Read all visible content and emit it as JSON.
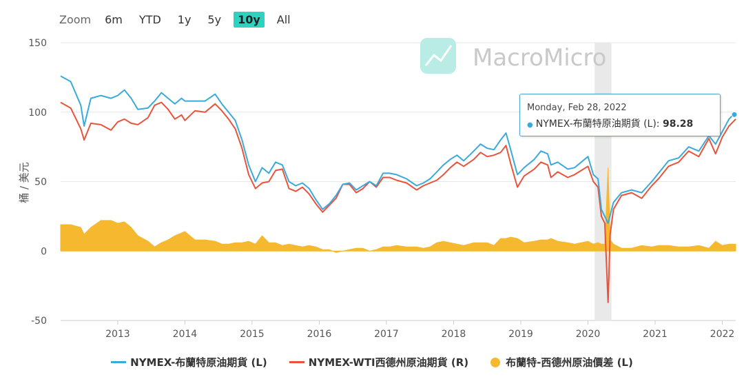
{
  "zoom": {
    "label": "Zoom",
    "buttons": [
      "6m",
      "YTD",
      "1y",
      "5y",
      "10y",
      "All"
    ],
    "active": "10y"
  },
  "watermark": "MacroMicro",
  "y_axis_title": "桶 / 美元",
  "tooltip": {
    "date": "Monday, Feb 28, 2022",
    "series": "NYMEX-布蘭特原油期貨 (L): ",
    "value": "98.28"
  },
  "legend": [
    {
      "label": "NYMEX-布蘭特原油期貨 (L)",
      "color": "#3aa9dc",
      "kind": "line"
    },
    {
      "label": "NYMEX-WTI西德州原油期貨 (R)",
      "color": "#e8533a",
      "kind": "line"
    },
    {
      "label": "布蘭特-西德州原油價差 (L)",
      "color": "#f5b82e",
      "kind": "dot"
    }
  ],
  "chart_data": {
    "type": "line",
    "x_ticks": [
      "2013",
      "2014",
      "2015",
      "2016",
      "2017",
      "2018",
      "2019",
      "2020",
      "2021",
      "2022"
    ],
    "y_ticks": [
      150,
      100,
      50,
      0,
      -50
    ],
    "ylim": [
      -50,
      150
    ],
    "xlim": [
      2012.15,
      2022.2
    ],
    "highlight_band": [
      2020.1,
      2020.35
    ],
    "series": [
      {
        "name": "NYMEX-布蘭特原油期貨 (L)",
        "color": "#3aa9dc",
        "points": [
          [
            2012.15,
            126
          ],
          [
            2012.3,
            122
          ],
          [
            2012.45,
            105
          ],
          [
            2012.5,
            90
          ],
          [
            2012.6,
            110
          ],
          [
            2012.75,
            112
          ],
          [
            2012.9,
            110
          ],
          [
            2013.0,
            112
          ],
          [
            2013.1,
            116
          ],
          [
            2013.2,
            110
          ],
          [
            2013.3,
            102
          ],
          [
            2013.45,
            103
          ],
          [
            2013.55,
            108
          ],
          [
            2013.65,
            114
          ],
          [
            2013.75,
            110
          ],
          [
            2013.85,
            106
          ],
          [
            2013.95,
            110
          ],
          [
            2014.0,
            108
          ],
          [
            2014.15,
            108
          ],
          [
            2014.3,
            108
          ],
          [
            2014.45,
            113
          ],
          [
            2014.55,
            106
          ],
          [
            2014.65,
            100
          ],
          [
            2014.75,
            94
          ],
          [
            2014.85,
            80
          ],
          [
            2014.95,
            62
          ],
          [
            2015.05,
            50
          ],
          [
            2015.15,
            60
          ],
          [
            2015.25,
            56
          ],
          [
            2015.35,
            64
          ],
          [
            2015.45,
            62
          ],
          [
            2015.55,
            50
          ],
          [
            2015.65,
            47
          ],
          [
            2015.75,
            49
          ],
          [
            2015.85,
            45
          ],
          [
            2015.95,
            37
          ],
          [
            2016.05,
            30
          ],
          [
            2016.15,
            34
          ],
          [
            2016.25,
            40
          ],
          [
            2016.35,
            48
          ],
          [
            2016.45,
            49
          ],
          [
            2016.55,
            44
          ],
          [
            2016.65,
            47
          ],
          [
            2016.75,
            50
          ],
          [
            2016.85,
            47
          ],
          [
            2016.95,
            56
          ],
          [
            2017.05,
            56
          ],
          [
            2017.15,
            55
          ],
          [
            2017.3,
            52
          ],
          [
            2017.45,
            47
          ],
          [
            2017.55,
            49
          ],
          [
            2017.65,
            52
          ],
          [
            2017.75,
            57
          ],
          [
            2017.85,
            62
          ],
          [
            2017.95,
            66
          ],
          [
            2018.05,
            69
          ],
          [
            2018.15,
            65
          ],
          [
            2018.3,
            72
          ],
          [
            2018.4,
            77
          ],
          [
            2018.5,
            74
          ],
          [
            2018.6,
            73
          ],
          [
            2018.7,
            80
          ],
          [
            2018.78,
            85
          ],
          [
            2018.85,
            73
          ],
          [
            2018.95,
            55
          ],
          [
            2019.05,
            60
          ],
          [
            2019.2,
            66
          ],
          [
            2019.3,
            72
          ],
          [
            2019.4,
            70
          ],
          [
            2019.45,
            62
          ],
          [
            2019.55,
            64
          ],
          [
            2019.7,
            59
          ],
          [
            2019.8,
            60
          ],
          [
            2019.9,
            64
          ],
          [
            2020.0,
            68
          ],
          [
            2020.08,
            55
          ],
          [
            2020.15,
            52
          ],
          [
            2020.2,
            30
          ],
          [
            2020.3,
            20
          ],
          [
            2020.38,
            35
          ],
          [
            2020.5,
            42
          ],
          [
            2020.65,
            44
          ],
          [
            2020.8,
            42
          ],
          [
            2020.95,
            50
          ],
          [
            2021.05,
            56
          ],
          [
            2021.2,
            65
          ],
          [
            2021.35,
            67
          ],
          [
            2021.5,
            75
          ],
          [
            2021.65,
            72
          ],
          [
            2021.8,
            83
          ],
          [
            2021.9,
            77
          ],
          [
            2022.0,
            86
          ],
          [
            2022.1,
            95
          ],
          [
            2022.2,
            100
          ]
        ]
      },
      {
        "name": "NYMEX-WTI西德州原油期貨 (R)",
        "color": "#e8533a",
        "points": [
          [
            2012.15,
            107
          ],
          [
            2012.3,
            103
          ],
          [
            2012.45,
            88
          ],
          [
            2012.5,
            80
          ],
          [
            2012.6,
            92
          ],
          [
            2012.75,
            91
          ],
          [
            2012.9,
            87
          ],
          [
            2013.0,
            93
          ],
          [
            2013.1,
            95
          ],
          [
            2013.2,
            92
          ],
          [
            2013.3,
            91
          ],
          [
            2013.45,
            96
          ],
          [
            2013.55,
            105
          ],
          [
            2013.65,
            107
          ],
          [
            2013.75,
            102
          ],
          [
            2013.85,
            95
          ],
          [
            2013.95,
            98
          ],
          [
            2014.0,
            94
          ],
          [
            2014.15,
            101
          ],
          [
            2014.3,
            100
          ],
          [
            2014.45,
            106
          ],
          [
            2014.55,
            101
          ],
          [
            2014.65,
            95
          ],
          [
            2014.75,
            88
          ],
          [
            2014.85,
            74
          ],
          [
            2014.95,
            55
          ],
          [
            2015.05,
            45
          ],
          [
            2015.15,
            49
          ],
          [
            2015.25,
            50
          ],
          [
            2015.35,
            58
          ],
          [
            2015.45,
            59
          ],
          [
            2015.55,
            45
          ],
          [
            2015.65,
            43
          ],
          [
            2015.75,
            46
          ],
          [
            2015.85,
            41
          ],
          [
            2015.95,
            34
          ],
          [
            2016.05,
            28
          ],
          [
            2016.15,
            33
          ],
          [
            2016.25,
            38
          ],
          [
            2016.35,
            48
          ],
          [
            2016.45,
            48
          ],
          [
            2016.55,
            42
          ],
          [
            2016.65,
            45
          ],
          [
            2016.75,
            50
          ],
          [
            2016.85,
            46
          ],
          [
            2016.95,
            53
          ],
          [
            2017.05,
            53
          ],
          [
            2017.15,
            51
          ],
          [
            2017.3,
            49
          ],
          [
            2017.45,
            44
          ],
          [
            2017.55,
            47
          ],
          [
            2017.65,
            49
          ],
          [
            2017.75,
            51
          ],
          [
            2017.85,
            55
          ],
          [
            2017.95,
            60
          ],
          [
            2018.05,
            64
          ],
          [
            2018.15,
            61
          ],
          [
            2018.3,
            66
          ],
          [
            2018.4,
            71
          ],
          [
            2018.5,
            68
          ],
          [
            2018.6,
            69
          ],
          [
            2018.7,
            71
          ],
          [
            2018.78,
            76
          ],
          [
            2018.85,
            63
          ],
          [
            2018.95,
            46
          ],
          [
            2019.05,
            54
          ],
          [
            2019.2,
            59
          ],
          [
            2019.3,
            64
          ],
          [
            2019.4,
            62
          ],
          [
            2019.45,
            53
          ],
          [
            2019.55,
            57
          ],
          [
            2019.7,
            53
          ],
          [
            2019.8,
            55
          ],
          [
            2019.9,
            58
          ],
          [
            2020.0,
            61
          ],
          [
            2020.08,
            50
          ],
          [
            2020.15,
            46
          ],
          [
            2020.2,
            25
          ],
          [
            2020.25,
            20
          ],
          [
            2020.3,
            -37
          ],
          [
            2020.33,
            12
          ],
          [
            2020.38,
            30
          ],
          [
            2020.5,
            40
          ],
          [
            2020.65,
            42
          ],
          [
            2020.8,
            38
          ],
          [
            2020.95,
            47
          ],
          [
            2021.05,
            52
          ],
          [
            2021.2,
            61
          ],
          [
            2021.35,
            64
          ],
          [
            2021.5,
            72
          ],
          [
            2021.65,
            68
          ],
          [
            2021.8,
            81
          ],
          [
            2021.9,
            70
          ],
          [
            2022.0,
            82
          ],
          [
            2022.1,
            90
          ],
          [
            2022.2,
            95
          ]
        ]
      },
      {
        "name": "布蘭特-西德州原油價差 (L)",
        "color": "#f5b82e",
        "points": [
          [
            2012.15,
            19
          ],
          [
            2012.3,
            19
          ],
          [
            2012.45,
            17
          ],
          [
            2012.5,
            12
          ],
          [
            2012.6,
            17
          ],
          [
            2012.75,
            22
          ],
          [
            2012.9,
            22
          ],
          [
            2013.0,
            20
          ],
          [
            2013.1,
            21
          ],
          [
            2013.2,
            17
          ],
          [
            2013.3,
            11
          ],
          [
            2013.45,
            7
          ],
          [
            2013.55,
            3
          ],
          [
            2013.65,
            6
          ],
          [
            2013.75,
            8
          ],
          [
            2013.85,
            11
          ],
          [
            2013.95,
            13
          ],
          [
            2014.0,
            14
          ],
          [
            2014.15,
            8
          ],
          [
            2014.3,
            8
          ],
          [
            2014.45,
            7
          ],
          [
            2014.55,
            5
          ],
          [
            2014.65,
            5
          ],
          [
            2014.75,
            6
          ],
          [
            2014.85,
            6
          ],
          [
            2014.95,
            7
          ],
          [
            2015.05,
            5
          ],
          [
            2015.15,
            11
          ],
          [
            2015.25,
            6
          ],
          [
            2015.35,
            6
          ],
          [
            2015.45,
            4
          ],
          [
            2015.55,
            5
          ],
          [
            2015.65,
            4
          ],
          [
            2015.75,
            3
          ],
          [
            2015.85,
            4
          ],
          [
            2015.95,
            3
          ],
          [
            2016.05,
            1
          ],
          [
            2016.15,
            1
          ],
          [
            2016.25,
            -1
          ],
          [
            2016.35,
            0
          ],
          [
            2016.45,
            1
          ],
          [
            2016.55,
            2
          ],
          [
            2016.65,
            2
          ],
          [
            2016.75,
            0
          ],
          [
            2016.85,
            1
          ],
          [
            2016.95,
            3
          ],
          [
            2017.05,
            3
          ],
          [
            2017.15,
            4
          ],
          [
            2017.3,
            3
          ],
          [
            2017.45,
            3
          ],
          [
            2017.55,
            2
          ],
          [
            2017.65,
            3
          ],
          [
            2017.75,
            6
          ],
          [
            2017.85,
            7
          ],
          [
            2017.95,
            6
          ],
          [
            2018.05,
            5
          ],
          [
            2018.15,
            4
          ],
          [
            2018.3,
            6
          ],
          [
            2018.4,
            6
          ],
          [
            2018.5,
            6
          ],
          [
            2018.6,
            4
          ],
          [
            2018.7,
            9
          ],
          [
            2018.78,
            9
          ],
          [
            2018.85,
            10
          ],
          [
            2018.95,
            9
          ],
          [
            2019.05,
            6
          ],
          [
            2019.2,
            7
          ],
          [
            2019.3,
            8
          ],
          [
            2019.4,
            8
          ],
          [
            2019.45,
            9
          ],
          [
            2019.55,
            7
          ],
          [
            2019.7,
            6
          ],
          [
            2019.8,
            5
          ],
          [
            2019.9,
            6
          ],
          [
            2020.0,
            7
          ],
          [
            2020.08,
            5
          ],
          [
            2020.15,
            6
          ],
          [
            2020.2,
            5
          ],
          [
            2020.25,
            5
          ],
          [
            2020.3,
            60
          ],
          [
            2020.33,
            8
          ],
          [
            2020.38,
            5
          ],
          [
            2020.5,
            2
          ],
          [
            2020.65,
            2
          ],
          [
            2020.8,
            4
          ],
          [
            2020.95,
            3
          ],
          [
            2021.05,
            4
          ],
          [
            2021.2,
            4
          ],
          [
            2021.35,
            3
          ],
          [
            2021.5,
            3
          ],
          [
            2021.65,
            4
          ],
          [
            2021.8,
            2
          ],
          [
            2021.9,
            7
          ],
          [
            2022.0,
            4
          ],
          [
            2022.1,
            5
          ],
          [
            2022.2,
            5
          ]
        ]
      }
    ]
  }
}
